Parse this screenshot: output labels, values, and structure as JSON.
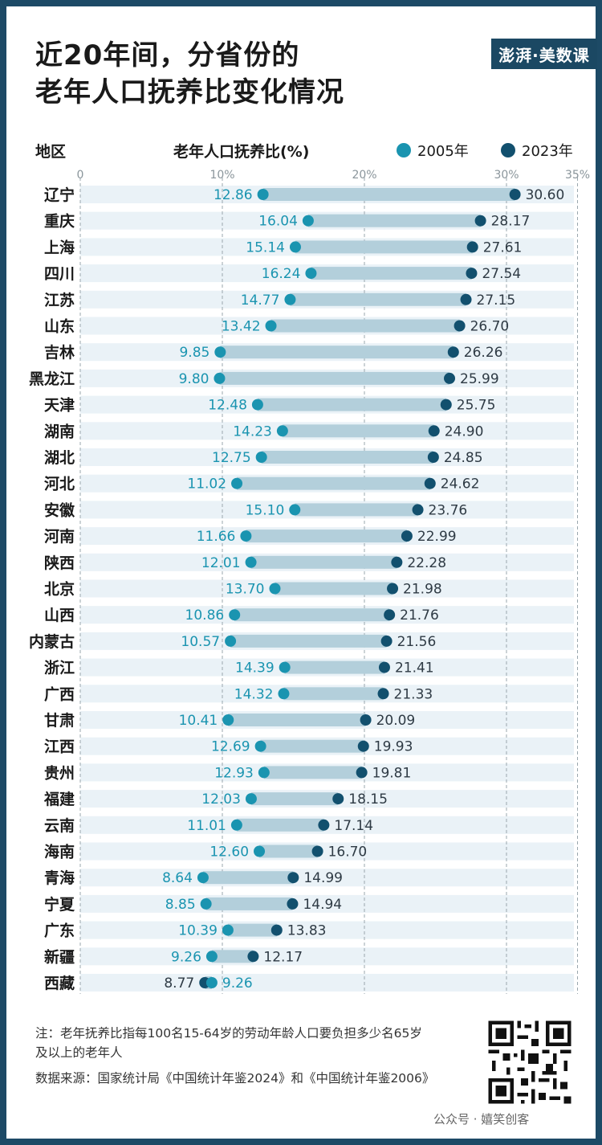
{
  "title_lines": [
    "近20年间，分省份的",
    "老年人口抚养比变化情况"
  ],
  "logo_text": "澎湃·美数课",
  "headers": {
    "region": "地区",
    "metric": "老年人口抚养比(%)"
  },
  "legend": [
    {
      "label": "2005年",
      "color": "#1a94b0"
    },
    {
      "label": "2023年",
      "color": "#12506e"
    }
  ],
  "colors": {
    "bar": "#b3cfdb",
    "stripe": "#eaf2f7",
    "grid": "#9aa7ae",
    "label_2005": "#1a94b0",
    "label_2023": "#2e3a44"
  },
  "notes": [
    "注：老年抚养比指每100名15-64岁的劳动年龄人口要负担多少名65岁及以上的老年人",
    "数据来源：国家统计局《中国统计年鉴2024》和《中国统计年鉴2006》"
  ],
  "watermark": "公众号 · 嬉笑创客",
  "chart_data": {
    "type": "dumbbell",
    "xlim": [
      0,
      35
    ],
    "tick_labels": [
      "0",
      "10%",
      "20%",
      "30%",
      "35%"
    ],
    "ticks": [
      0,
      10,
      20,
      30,
      35
    ],
    "series": [
      {
        "name": "2005年"
      },
      {
        "name": "2023年"
      }
    ],
    "categories": [
      "辽宁",
      "重庆",
      "上海",
      "四川",
      "江苏",
      "山东",
      "吉林",
      "黑龙江",
      "天津",
      "湖南",
      "湖北",
      "河北",
      "安徽",
      "河南",
      "陕西",
      "北京",
      "山西",
      "内蒙古",
      "浙江",
      "广西",
      "甘肃",
      "江西",
      "贵州",
      "福建",
      "云南",
      "海南",
      "青海",
      "宁夏",
      "广东",
      "新疆",
      "西藏"
    ],
    "v2005": [
      12.86,
      16.04,
      15.14,
      16.24,
      14.77,
      13.42,
      9.85,
      9.8,
      12.48,
      14.23,
      12.75,
      11.02,
      15.1,
      11.66,
      12.01,
      13.7,
      10.86,
      10.57,
      14.39,
      14.32,
      10.41,
      12.69,
      12.93,
      12.03,
      11.01,
      12.6,
      8.64,
      8.85,
      10.39,
      9.26,
      9.26
    ],
    "v2023": [
      30.6,
      28.17,
      27.61,
      27.54,
      27.15,
      26.7,
      26.26,
      25.99,
      25.75,
      24.9,
      24.85,
      24.62,
      23.76,
      22.99,
      22.28,
      21.98,
      21.76,
      21.56,
      21.41,
      21.33,
      20.09,
      19.93,
      19.81,
      18.15,
      17.14,
      16.7,
      14.99,
      14.94,
      13.83,
      12.17,
      8.77
    ]
  }
}
